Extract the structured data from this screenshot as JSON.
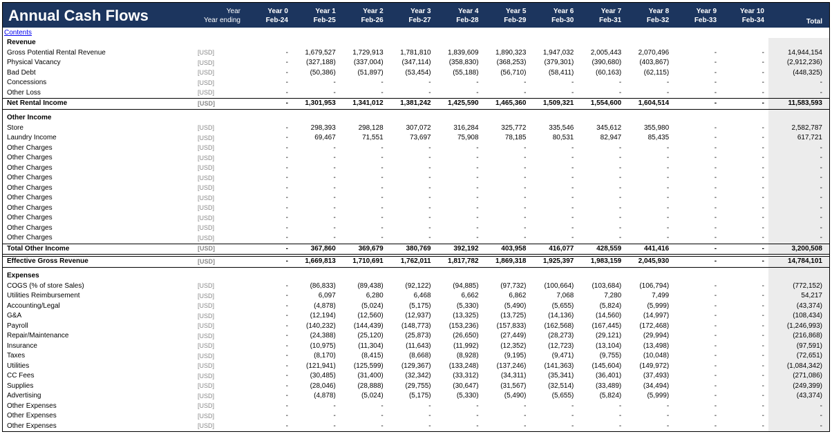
{
  "title": "Annual Cash Flows",
  "meta": {
    "yearLabel": "Year",
    "yearEndingLabel": "Year ending"
  },
  "years": [
    "Year 0",
    "Year 1",
    "Year 2",
    "Year 3",
    "Year 4",
    "Year 5",
    "Year 6",
    "Year 7",
    "Year 8",
    "Year 9",
    "Year 10"
  ],
  "yearEndings": [
    "Feb-24",
    "Feb-25",
    "Feb-26",
    "Feb-27",
    "Feb-28",
    "Feb-29",
    "Feb-30",
    "Feb-31",
    "Feb-32",
    "Feb-33",
    "Feb-34"
  ],
  "totalLabel": "Total",
  "contentsLink": "Contents",
  "unit": "[USD]",
  "rows": [
    {
      "type": "section",
      "label": "Revenue"
    },
    {
      "type": "line",
      "label": "Gross Potential Rental Revenue",
      "unit": "[USD]",
      "vals": [
        "-",
        "1,679,527",
        "1,729,913",
        "1,781,810",
        "1,839,609",
        "1,890,323",
        "1,947,032",
        "2,005,443",
        "2,070,496",
        "-",
        "-"
      ],
      "total": "14,944,154"
    },
    {
      "type": "line",
      "label": "Physical Vacancy",
      "unit": "[USD]",
      "vals": [
        "-",
        "(327,188)",
        "(337,004)",
        "(347,114)",
        "(358,830)",
        "(368,253)",
        "(379,301)",
        "(390,680)",
        "(403,867)",
        "-",
        "-"
      ],
      "total": "(2,912,236)"
    },
    {
      "type": "line",
      "label": "Bad Debt",
      "unit": "[USD]",
      "vals": [
        "-",
        "(50,386)",
        "(51,897)",
        "(53,454)",
        "(55,188)",
        "(56,710)",
        "(58,411)",
        "(60,163)",
        "(62,115)",
        "-",
        "-"
      ],
      "total": "(448,325)"
    },
    {
      "type": "line",
      "label": "Concessions",
      "unit": "[USD]",
      "vals": [
        "-",
        "-",
        "-",
        "-",
        "-",
        "-",
        "-",
        "-",
        "-",
        "-",
        "-"
      ],
      "total": "-"
    },
    {
      "type": "line",
      "label": "Other Loss",
      "unit": "[USD]",
      "vals": [
        "-",
        "-",
        "-",
        "-",
        "-",
        "-",
        "-",
        "-",
        "-",
        "-",
        "-"
      ],
      "total": "-",
      "cls": "underlined"
    },
    {
      "type": "subtotal",
      "label": "Net Rental Income",
      "unit": "[USD]",
      "vals": [
        "-",
        "1,301,953",
        "1,341,012",
        "1,381,242",
        "1,425,590",
        "1,465,360",
        "1,509,321",
        "1,554,600",
        "1,604,514",
        "-",
        "-"
      ],
      "total": "11,583,593"
    },
    {
      "type": "spacer"
    },
    {
      "type": "section",
      "label": "Other Income"
    },
    {
      "type": "line",
      "label": "Store",
      "unit": "[USD]",
      "vals": [
        "-",
        "298,393",
        "298,128",
        "307,072",
        "316,284",
        "325,772",
        "335,546",
        "345,612",
        "355,980",
        "-",
        "-"
      ],
      "total": "2,582,787"
    },
    {
      "type": "line",
      "label": "Laundry Income",
      "unit": "[USD]",
      "vals": [
        "-",
        "69,467",
        "71,551",
        "73,697",
        "75,908",
        "78,185",
        "80,531",
        "82,947",
        "85,435",
        "-",
        "-"
      ],
      "total": "617,721"
    },
    {
      "type": "line",
      "label": "Other Charges",
      "unit": "[USD]",
      "vals": [
        "-",
        "-",
        "-",
        "-",
        "-",
        "-",
        "-",
        "-",
        "-",
        "-",
        "-"
      ],
      "total": "-"
    },
    {
      "type": "line",
      "label": "Other Charges",
      "unit": "[USD]",
      "vals": [
        "-",
        "-",
        "-",
        "-",
        "-",
        "-",
        "-",
        "-",
        "-",
        "-",
        "-"
      ],
      "total": "-"
    },
    {
      "type": "line",
      "label": "Other Charges",
      "unit": "[USD]",
      "vals": [
        "-",
        "-",
        "-",
        "-",
        "-",
        "-",
        "-",
        "-",
        "-",
        "-",
        "-"
      ],
      "total": "-"
    },
    {
      "type": "line",
      "label": "Other Charges",
      "unit": "[USD]",
      "vals": [
        "-",
        "-",
        "-",
        "-",
        "-",
        "-",
        "-",
        "-",
        "-",
        "-",
        "-"
      ],
      "total": "-"
    },
    {
      "type": "line",
      "label": "Other Charges",
      "unit": "[USD]",
      "vals": [
        "-",
        "-",
        "-",
        "-",
        "-",
        "-",
        "-",
        "-",
        "-",
        "-",
        "-"
      ],
      "total": "-"
    },
    {
      "type": "line",
      "label": "Other Charges",
      "unit": "[USD]",
      "vals": [
        "-",
        "-",
        "-",
        "-",
        "-",
        "-",
        "-",
        "-",
        "-",
        "-",
        "-"
      ],
      "total": "-"
    },
    {
      "type": "line",
      "label": "Other Charges",
      "unit": "[USD]",
      "vals": [
        "-",
        "-",
        "-",
        "-",
        "-",
        "-",
        "-",
        "-",
        "-",
        "-",
        "-"
      ],
      "total": "-"
    },
    {
      "type": "line",
      "label": "Other Charges",
      "unit": "[USD]",
      "vals": [
        "-",
        "-",
        "-",
        "-",
        "-",
        "-",
        "-",
        "-",
        "-",
        "-",
        "-"
      ],
      "total": "-"
    },
    {
      "type": "line",
      "label": "Other Charges",
      "unit": "[USD]",
      "vals": [
        "-",
        "-",
        "-",
        "-",
        "-",
        "-",
        "-",
        "-",
        "-",
        "-",
        "-"
      ],
      "total": "-"
    },
    {
      "type": "line",
      "label": "Other Charges",
      "unit": "[USD]",
      "vals": [
        "-",
        "-",
        "-",
        "-",
        "-",
        "-",
        "-",
        "-",
        "-",
        "-",
        "-"
      ],
      "total": "-",
      "cls": "underlined"
    },
    {
      "type": "subtotal",
      "label": "Total Other Income",
      "unit": "[USD]",
      "vals": [
        "-",
        "367,860",
        "369,679",
        "380,769",
        "392,192",
        "403,958",
        "416,077",
        "428,559",
        "441,416",
        "-",
        "-"
      ],
      "total": "3,200,508"
    },
    {
      "type": "gap"
    },
    {
      "type": "boxed",
      "label": "Effective Gross Revenue",
      "unit": "[USD]",
      "vals": [
        "-",
        "1,669,813",
        "1,710,691",
        "1,762,011",
        "1,817,782",
        "1,869,318",
        "1,925,397",
        "1,983,159",
        "2,045,930",
        "-",
        "-"
      ],
      "total": "14,784,101"
    },
    {
      "type": "spacer"
    },
    {
      "type": "section",
      "label": "Expenses"
    },
    {
      "type": "line",
      "label": "COGS (% of store Sales)",
      "unit": "[USD]",
      "vals": [
        "-",
        "(86,833)",
        "(89,438)",
        "(92,122)",
        "(94,885)",
        "(97,732)",
        "(100,664)",
        "(103,684)",
        "(106,794)",
        "-",
        "-"
      ],
      "total": "(772,152)"
    },
    {
      "type": "line",
      "label": "Utilities Reimbursement",
      "unit": "[USD]",
      "vals": [
        "-",
        "6,097",
        "6,280",
        "6,468",
        "6,662",
        "6,862",
        "7,068",
        "7,280",
        "7,499",
        "-",
        "-"
      ],
      "total": "54,217"
    },
    {
      "type": "line",
      "label": "Accounting/Legal",
      "unit": "[USD]",
      "vals": [
        "-",
        "(4,878)",
        "(5,024)",
        "(5,175)",
        "(5,330)",
        "(5,490)",
        "(5,655)",
        "(5,824)",
        "(5,999)",
        "-",
        "-"
      ],
      "total": "(43,374)"
    },
    {
      "type": "line",
      "label": "G&A",
      "unit": "[USD]",
      "vals": [
        "-",
        "(12,194)",
        "(12,560)",
        "(12,937)",
        "(13,325)",
        "(13,725)",
        "(14,136)",
        "(14,560)",
        "(14,997)",
        "-",
        "-"
      ],
      "total": "(108,434)"
    },
    {
      "type": "line",
      "label": "Payroll",
      "unit": "[USD]",
      "vals": [
        "-",
        "(140,232)",
        "(144,439)",
        "(148,773)",
        "(153,236)",
        "(157,833)",
        "(162,568)",
        "(167,445)",
        "(172,468)",
        "-",
        "-"
      ],
      "total": "(1,246,993)"
    },
    {
      "type": "line",
      "label": "Repair/Maintenance",
      "unit": "[USD]",
      "vals": [
        "-",
        "(24,388)",
        "(25,120)",
        "(25,873)",
        "(26,650)",
        "(27,449)",
        "(28,273)",
        "(29,121)",
        "(29,994)",
        "-",
        "-"
      ],
      "total": "(216,868)"
    },
    {
      "type": "line",
      "label": "Insurance",
      "unit": "[USD]",
      "vals": [
        "-",
        "(10,975)",
        "(11,304)",
        "(11,643)",
        "(11,992)",
        "(12,352)",
        "(12,723)",
        "(13,104)",
        "(13,498)",
        "-",
        "-"
      ],
      "total": "(97,591)"
    },
    {
      "type": "line",
      "label": "Taxes",
      "unit": "[USD]",
      "vals": [
        "-",
        "(8,170)",
        "(8,415)",
        "(8,668)",
        "(8,928)",
        "(9,195)",
        "(9,471)",
        "(9,755)",
        "(10,048)",
        "-",
        "-"
      ],
      "total": "(72,651)"
    },
    {
      "type": "line",
      "label": "Utilities",
      "unit": "[USD]",
      "vals": [
        "-",
        "(121,941)",
        "(125,599)",
        "(129,367)",
        "(133,248)",
        "(137,246)",
        "(141,363)",
        "(145,604)",
        "(149,972)",
        "-",
        "-"
      ],
      "total": "(1,084,342)"
    },
    {
      "type": "line",
      "label": "CC Fees",
      "unit": "[USD]",
      "vals": [
        "-",
        "(30,485)",
        "(31,400)",
        "(32,342)",
        "(33,312)",
        "(34,311)",
        "(35,341)",
        "(36,401)",
        "(37,493)",
        "-",
        "-"
      ],
      "total": "(271,086)"
    },
    {
      "type": "line",
      "label": "Supplies",
      "unit": "[USD]",
      "vals": [
        "-",
        "(28,046)",
        "(28,888)",
        "(29,755)",
        "(30,647)",
        "(31,567)",
        "(32,514)",
        "(33,489)",
        "(34,494)",
        "-",
        "-"
      ],
      "total": "(249,399)"
    },
    {
      "type": "line",
      "label": "Advertising",
      "unit": "[USD]",
      "vals": [
        "-",
        "(4,878)",
        "(5,024)",
        "(5,175)",
        "(5,330)",
        "(5,490)",
        "(5,655)",
        "(5,824)",
        "(5,999)",
        "-",
        "-"
      ],
      "total": "(43,374)"
    },
    {
      "type": "line",
      "label": "Other Expenses",
      "unit": "[USD]",
      "vals": [
        "-",
        "-",
        "-",
        "-",
        "-",
        "-",
        "-",
        "-",
        "-",
        "-",
        "-"
      ],
      "total": "-"
    },
    {
      "type": "line",
      "label": "Other Expenses",
      "unit": "[USD]",
      "vals": [
        "-",
        "-",
        "-",
        "-",
        "-",
        "-",
        "-",
        "-",
        "-",
        "-",
        "-"
      ],
      "total": "-"
    },
    {
      "type": "line",
      "label": "Other Expenses",
      "unit": "[USD]",
      "vals": [
        "-",
        "-",
        "-",
        "-",
        "-",
        "-",
        "-",
        "-",
        "-",
        "-",
        "-"
      ],
      "total": "-"
    }
  ],
  "colors": {
    "headerBg": "#1c355e",
    "headerText": "#ffffff",
    "totalBg": "#ececec",
    "unitText": "#888888",
    "link": "#0000ee"
  }
}
